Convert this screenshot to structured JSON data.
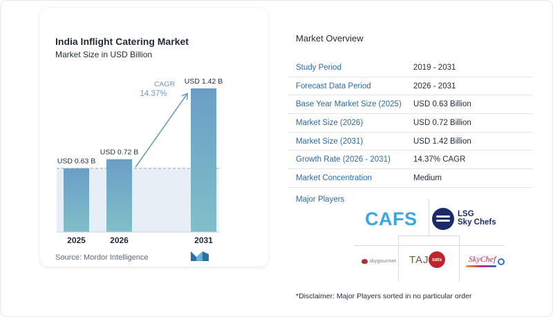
{
  "chart_data": {
    "type": "bar",
    "title": "India Inflight Catering Market",
    "subtitle": "Market Size in USD Billion",
    "categories": [
      "2025",
      "2026",
      "2031"
    ],
    "values": [
      0.63,
      0.72,
      1.42
    ],
    "value_labels": [
      "USD 0.63 B",
      "USD 0.72 B",
      "USD 1.42 B"
    ],
    "annotation": {
      "label": "CAGR",
      "value": "14.37%"
    },
    "colors": {
      "bar_top": "#6b9ec6",
      "bar_bottom": "#7fbcc8",
      "baseline_band": "#e7eef6",
      "arrow": "#6e9ac2"
    }
  },
  "source": "Source:  Mordor Intelligence",
  "overview": {
    "title": "Market Overview",
    "rows": [
      {
        "key": "Study Period",
        "value": "2019 - 2031"
      },
      {
        "key": "Forecast Data Period",
        "value": "2026 - 2031"
      },
      {
        "key": "Base Year Market Size (2025)",
        "value": "USD 0.63 Billion"
      },
      {
        "key": "Market Size (2026)",
        "value": "USD 0.72 Billion"
      },
      {
        "key": "Market Size (2031)",
        "value": "USD 1.42 Billion"
      },
      {
        "key": "Growth Rate (2026 - 2031)",
        "value": "14.37% CAGR"
      },
      {
        "key": "Market Concentration",
        "value": "Medium"
      }
    ]
  },
  "players": {
    "label": "Major Players",
    "logos": [
      "CAFS",
      "LSG Sky Chefs",
      "skygourmet",
      "TAJ",
      "sats",
      "SkyChef"
    ],
    "lsg_lines": [
      "LSG",
      "Sky Chefs"
    ]
  },
  "disclaimer": "*Disclaimer: Major Players sorted in no particular order"
}
